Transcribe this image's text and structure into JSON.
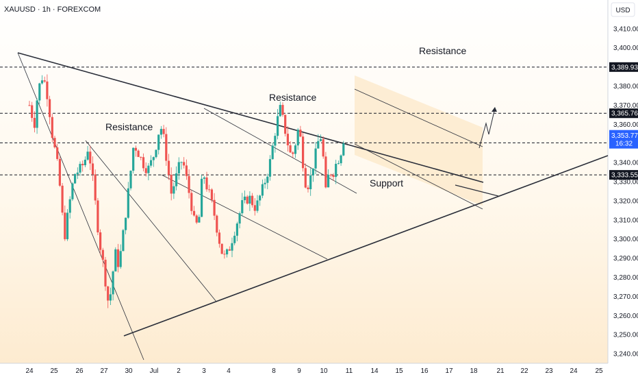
{
  "header": {
    "symbol_line": "XAUUSD · 1h · FOREXCOM"
  },
  "axis": {
    "currency": "USD"
  },
  "chart_data": {
    "type": "candlestick",
    "title": "XAUUSD · 1h · FOREXCOM",
    "ylim": [
      3235,
      3425
    ],
    "y_ticks": [
      3240,
      3250,
      3260,
      3270,
      3280,
      3290,
      3300,
      3310,
      3320,
      3330,
      3340,
      3350,
      3360,
      3370,
      3380,
      3390,
      3400,
      3410
    ],
    "y_tick_labels": [
      "3,240.00",
      "3,250.00",
      "3,260.00",
      "3,270.00",
      "3,280.00",
      "3,290.00",
      "3,300.00",
      "3,310.00",
      "3,320.00",
      "3,330.00",
      "3,340.00",
      "3,350.00",
      "3,360.00",
      "3,370.00",
      "3,380.00",
      "3,390.00",
      "3,400.00",
      "3,410.00"
    ],
    "x_tick_labels": [
      "24",
      "25",
      "26",
      "27",
      "30",
      "Jul",
      "2",
      "3",
      "4",
      "8",
      "9",
      "10",
      "11",
      "14",
      "15",
      "16",
      "17",
      "18",
      "21",
      "22",
      "23",
      "24",
      "25"
    ],
    "x_tick_index": [
      0,
      1,
      2,
      3,
      4,
      5,
      6,
      7,
      8,
      9,
      10,
      11,
      12,
      13,
      14,
      15,
      16,
      17,
      18,
      19,
      20,
      21,
      22
    ],
    "price_series": [
      {
        "x": 0.0,
        "y": 3370
      },
      {
        "x": 0.2,
        "y": 3360
      },
      {
        "x": 0.35,
        "y": 3378
      },
      {
        "x": 0.55,
        "y": 3386
      },
      {
        "x": 0.75,
        "y": 3374
      },
      {
        "x": 0.95,
        "y": 3352
      },
      {
        "x": 1.1,
        "y": 3342
      },
      {
        "x": 1.25,
        "y": 3325
      },
      {
        "x": 1.4,
        "y": 3300
      },
      {
        "x": 1.6,
        "y": 3318
      },
      {
        "x": 1.8,
        "y": 3334
      },
      {
        "x": 2.0,
        "y": 3336
      },
      {
        "x": 2.2,
        "y": 3340
      },
      {
        "x": 2.35,
        "y": 3348
      },
      {
        "x": 2.5,
        "y": 3336
      },
      {
        "x": 2.65,
        "y": 3318
      },
      {
        "x": 2.8,
        "y": 3300
      },
      {
        "x": 2.95,
        "y": 3288
      },
      {
        "x": 3.1,
        "y": 3274
      },
      {
        "x": 3.2,
        "y": 3264
      },
      {
        "x": 3.3,
        "y": 3276
      },
      {
        "x": 3.45,
        "y": 3293
      },
      {
        "x": 3.6,
        "y": 3286
      },
      {
        "x": 3.75,
        "y": 3300
      },
      {
        "x": 3.9,
        "y": 3316
      },
      {
        "x": 4.05,
        "y": 3332
      },
      {
        "x": 4.2,
        "y": 3350
      },
      {
        "x": 4.35,
        "y": 3346
      },
      {
        "x": 4.55,
        "y": 3340
      },
      {
        "x": 4.75,
        "y": 3336
      },
      {
        "x": 4.95,
        "y": 3342
      },
      {
        "x": 5.1,
        "y": 3350
      },
      {
        "x": 5.25,
        "y": 3360
      },
      {
        "x": 5.4,
        "y": 3352
      },
      {
        "x": 5.55,
        "y": 3338
      },
      {
        "x": 5.7,
        "y": 3324
      },
      {
        "x": 5.85,
        "y": 3330
      },
      {
        "x": 6.0,
        "y": 3337
      },
      {
        "x": 6.15,
        "y": 3342
      },
      {
        "x": 6.3,
        "y": 3332
      },
      {
        "x": 6.5,
        "y": 3318
      },
      {
        "x": 6.65,
        "y": 3306
      },
      {
        "x": 6.8,
        "y": 3310
      },
      {
        "x": 6.95,
        "y": 3336
      },
      {
        "x": 7.1,
        "y": 3328
      },
      {
        "x": 7.25,
        "y": 3322
      },
      {
        "x": 7.4,
        "y": 3314
      },
      {
        "x": 7.55,
        "y": 3304
      },
      {
        "x": 7.7,
        "y": 3294
      },
      {
        "x": 7.85,
        "y": 3290
      },
      {
        "x": 8.0,
        "y": 3294
      },
      {
        "x": 8.15,
        "y": 3306
      },
      {
        "x": 8.3,
        "y": 3318
      },
      {
        "x": 8.45,
        "y": 3322
      },
      {
        "x": 8.6,
        "y": 3316
      },
      {
        "x": 8.75,
        "y": 3326
      },
      {
        "x": 8.9,
        "y": 3338
      },
      {
        "x": 9.0,
        "y": 3352
      },
      {
        "x": 9.1,
        "y": 3360
      },
      {
        "x": 9.25,
        "y": 3368
      },
      {
        "x": 9.4,
        "y": 3360
      },
      {
        "x": 9.55,
        "y": 3350
      },
      {
        "x": 9.7,
        "y": 3342
      },
      {
        "x": 9.85,
        "y": 3350
      },
      {
        "x": 10.0,
        "y": 3360
      },
      {
        "x": 10.1,
        "y": 3346
      },
      {
        "x": 10.25,
        "y": 3330
      },
      {
        "x": 10.4,
        "y": 3328
      },
      {
        "x": 10.55,
        "y": 3338
      },
      {
        "x": 10.7,
        "y": 3346
      },
      {
        "x": 10.85,
        "y": 3356
      },
      {
        "x": 11.0,
        "y": 3340
      },
      {
        "x": 11.1,
        "y": 3320
      },
      {
        "x": 11.2,
        "y": 3336
      },
      {
        "x": 11.35,
        "y": 3334
      },
      {
        "x": 11.5,
        "y": 3340
      },
      {
        "x": 11.65,
        "y": 3344
      },
      {
        "x": 11.8,
        "y": 3353.77
      }
    ],
    "horizontal_levels": [
      {
        "label": "3,389.93",
        "value": 3389.93,
        "style": "dashed"
      },
      {
        "label": "3,365.76",
        "value": 3365.76,
        "style": "dashed"
      },
      {
        "label": "3,350.31",
        "value": 3350.31,
        "style": "dashed"
      },
      {
        "label": "3,333.55",
        "value": 3333.55,
        "style": "dashed"
      }
    ],
    "current_price": {
      "label": "3,353.77",
      "countdown": "16:32",
      "value": 3353.77,
      "color": "#2962ff"
    },
    "annotations": [
      {
        "text": "Resistance",
        "id": "resistance-left"
      },
      {
        "text": "Resistance",
        "id": "resistance-mid"
      },
      {
        "text": "Resistance",
        "id": "resistance-top"
      },
      {
        "text": "Support",
        "id": "support"
      }
    ],
    "colors": {
      "up": "#26a69a",
      "down": "#ef5350",
      "background": "#ffffff",
      "highlight_box": "#fce8c8",
      "trendline": "#2a2e39",
      "level_badge": "#131722",
      "current_badge": "#2962ff"
    }
  }
}
